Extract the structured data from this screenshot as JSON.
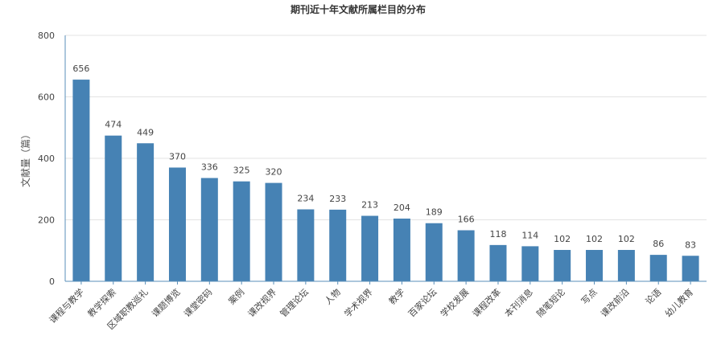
{
  "chart_data": {
    "type": "bar",
    "title": "期刊近十年文献所属栏目的分布",
    "xlabel": "",
    "ylabel": "文献量（篇）",
    "ylim": [
      0,
      800
    ],
    "yticks": [
      0,
      200,
      400,
      600,
      800
    ],
    "grid": true,
    "bar_color": "#4682b4",
    "categories": [
      "课程与教学",
      "教学探索",
      "区域职教巡礼",
      "课题博览",
      "课堂密码",
      "案例",
      "课改视界",
      "管理论坛",
      "人物",
      "学术视界",
      "教学",
      "百家论坛",
      "学校发展",
      "课程改革",
      "本刊消息",
      "随笔短论",
      "写点",
      "课改前沿",
      "论语",
      "幼儿教育"
    ],
    "values": [
      656,
      474,
      449,
      370,
      336,
      325,
      320,
      234,
      233,
      213,
      204,
      189,
      166,
      118,
      114,
      102,
      102,
      102,
      86,
      83
    ]
  }
}
